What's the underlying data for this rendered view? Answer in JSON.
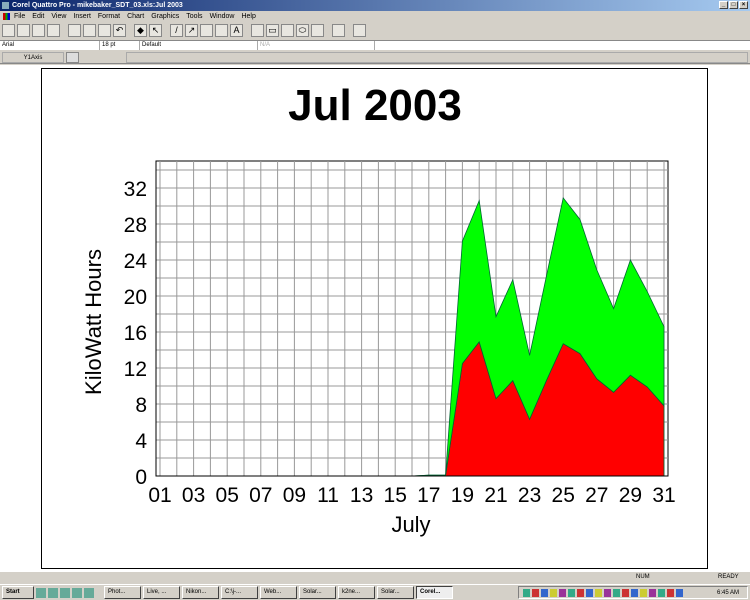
{
  "window": {
    "title": "Corel Quattro Pro - mikebaker_SDT_03.xls:Jul 2003"
  },
  "menu": [
    "File",
    "Edit",
    "View",
    "Insert",
    "Format",
    "Chart",
    "Graphics",
    "Tools",
    "Window",
    "Help"
  ],
  "toolbar_icons": [
    "new-icon",
    "open-icon",
    "save-icon",
    "print-icon",
    "cut-icon",
    "copy-icon",
    "paste-icon",
    "undo-icon",
    "gem-icon",
    "select-arrow-icon",
    "line-icon",
    "arrow-line-icon",
    "polyline-icon",
    "freehand-icon",
    "text-icon",
    "polygon-icon",
    "rectangle-icon",
    "rounded-rect-icon",
    "ellipse-icon",
    "shape-icon",
    "frame-icon",
    "grid-icon"
  ],
  "format_bar": {
    "font": "Arial",
    "size": "18 pt",
    "style": "Default",
    "value": "N/A"
  },
  "property_bar": {
    "selection": "Y1Axis"
  },
  "status": {
    "num": "NUM",
    "mode": "READY"
  },
  "taskbar": {
    "start": "Start",
    "tasks": [
      "Phot...",
      "Live, ...",
      "Nikon...",
      "C:\\j-...",
      "Web...",
      "Solar...",
      "k2ne...",
      "Solar...",
      "Corel..."
    ],
    "active": 8,
    "clock": "6:45 AM"
  },
  "chart_data": {
    "type": "area",
    "stacked": true,
    "title": "Jul 2003",
    "xlabel": "July",
    "ylabel": "KiloWatt Hours",
    "x": [
      1,
      2,
      3,
      4,
      5,
      6,
      7,
      8,
      9,
      10,
      11,
      12,
      13,
      14,
      15,
      16,
      17,
      18,
      19,
      20,
      21,
      22,
      23,
      24,
      25,
      26,
      27,
      28,
      29,
      30,
      31
    ],
    "xtick_labels": [
      "01",
      "03",
      "05",
      "07",
      "09",
      "11",
      "13",
      "15",
      "17",
      "19",
      "21",
      "23",
      "25",
      "27",
      "29",
      "31"
    ],
    "yticks": [
      0,
      4,
      8,
      12,
      16,
      20,
      24,
      28,
      32
    ],
    "ylim": [
      0,
      35
    ],
    "grid": true,
    "series": [
      {
        "color": "#ff0000",
        "values": [
          0,
          0,
          0,
          0,
          0,
          0,
          0,
          0,
          0,
          0,
          0,
          0,
          0,
          0,
          0,
          0,
          0.1,
          0.1,
          12.5,
          14.9,
          8.6,
          10.6,
          6.3,
          10.6,
          14.7,
          13.6,
          10.8,
          9.3,
          11.2,
          9.9,
          7.8
        ]
      },
      {
        "color": "#00ff00",
        "values": [
          0,
          0,
          0,
          0,
          0,
          0,
          0,
          0,
          0,
          0,
          0,
          0,
          0,
          0,
          0,
          0,
          0,
          0,
          13.6,
          15.7,
          9.1,
          11.2,
          7.1,
          11.6,
          16.2,
          14.9,
          12.1,
          9.3,
          12.8,
          10.6,
          8.8
        ]
      }
    ]
  }
}
